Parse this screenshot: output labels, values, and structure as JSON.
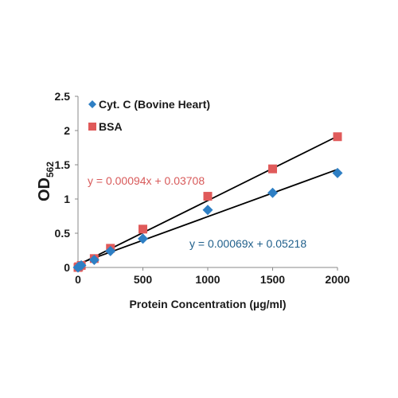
{
  "chart_data": {
    "type": "scatter",
    "xlabel": "Protein Concentration (µg/ml)",
    "ylabel_main": "OD",
    "ylabel_sub": "562",
    "xlim": [
      0,
      2000
    ],
    "ylim": [
      0,
      2.5
    ],
    "xticks": [
      0,
      500,
      1000,
      1500,
      2000
    ],
    "yticks": [
      0,
      0.5,
      1,
      1.5,
      2,
      2.5
    ],
    "xtick_labels": [
      "0",
      "500",
      "1000",
      "1500",
      "2000"
    ],
    "ytick_labels": [
      "0",
      "0.5",
      "1",
      "1.5",
      "2",
      "2.5"
    ],
    "grid": false,
    "legend_position": "top-left",
    "series": [
      {
        "name": "Cyt. C (Bovine Heart)",
        "marker": "diamond",
        "color": "#2e7fc4",
        "x": [
          0,
          5,
          25,
          125,
          250,
          500,
          1000,
          1500,
          2000
        ],
        "y": [
          0.0,
          0.01,
          0.03,
          0.11,
          0.24,
          0.42,
          0.84,
          1.09,
          1.38
        ],
        "fit": {
          "slope": 0.00069,
          "intercept": 0.05218
        },
        "equation": "y = 0.00069x + 0.05218",
        "equation_color": "#1f5f8b"
      },
      {
        "name": "BSA",
        "marker": "square",
        "color": "#e05a5a",
        "x": [
          0,
          5,
          25,
          125,
          250,
          500,
          1000,
          1500,
          2000
        ],
        "y": [
          0.0,
          0.01,
          0.03,
          0.13,
          0.28,
          0.56,
          1.04,
          1.44,
          1.91
        ],
        "fit": {
          "slope": 0.00094,
          "intercept": 0.03708
        },
        "equation": "y = 0.00094x + 0.03708",
        "equation_color": "#d85a5a"
      }
    ]
  }
}
